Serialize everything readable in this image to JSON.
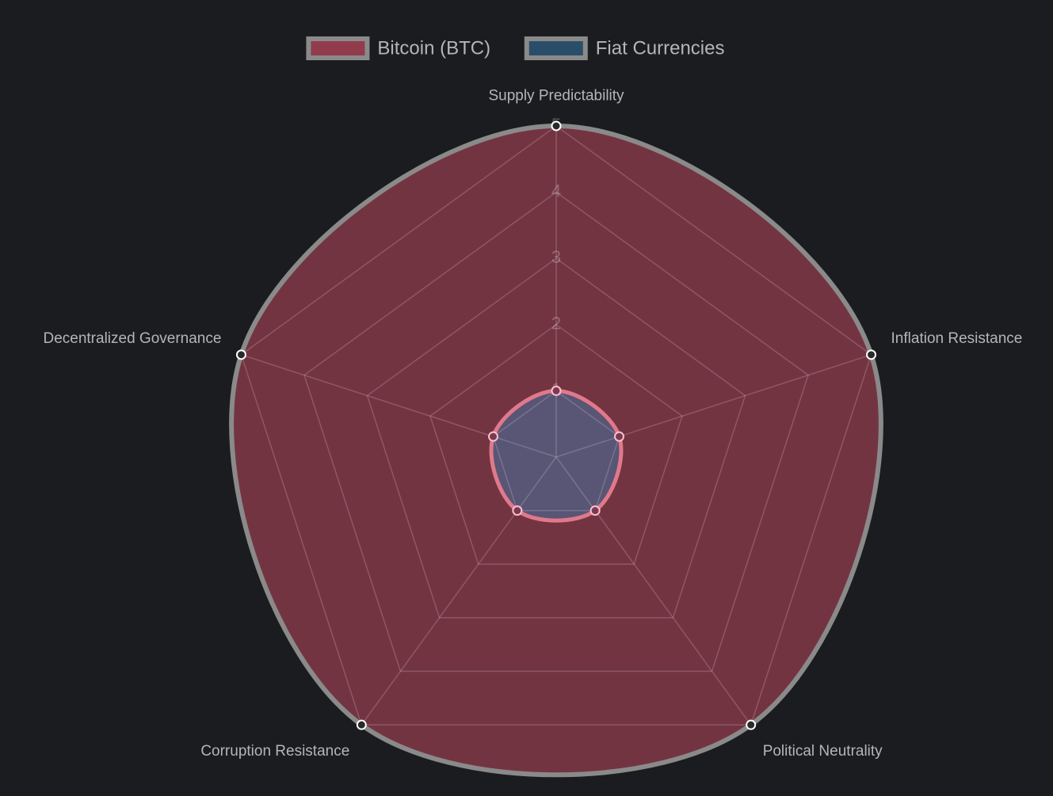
{
  "chart_data": {
    "type": "radar",
    "categories": [
      "Supply Predictability",
      "Inflation Resistance",
      "Political Neutrality",
      "Corruption Resistance",
      "Decentralized Governance"
    ],
    "series": [
      {
        "name": "Bitcoin (BTC)",
        "color": "#e0526a",
        "values": [
          5,
          5,
          5,
          5,
          5
        ]
      },
      {
        "name": "Fiat Currencies",
        "color": "#3a7fb5",
        "values": [
          1,
          1,
          1,
          1,
          1
        ]
      }
    ],
    "ylim": [
      0,
      5
    ],
    "yticks": [
      1,
      2,
      3,
      4,
      5
    ],
    "grid": true,
    "legend": "top"
  }
}
